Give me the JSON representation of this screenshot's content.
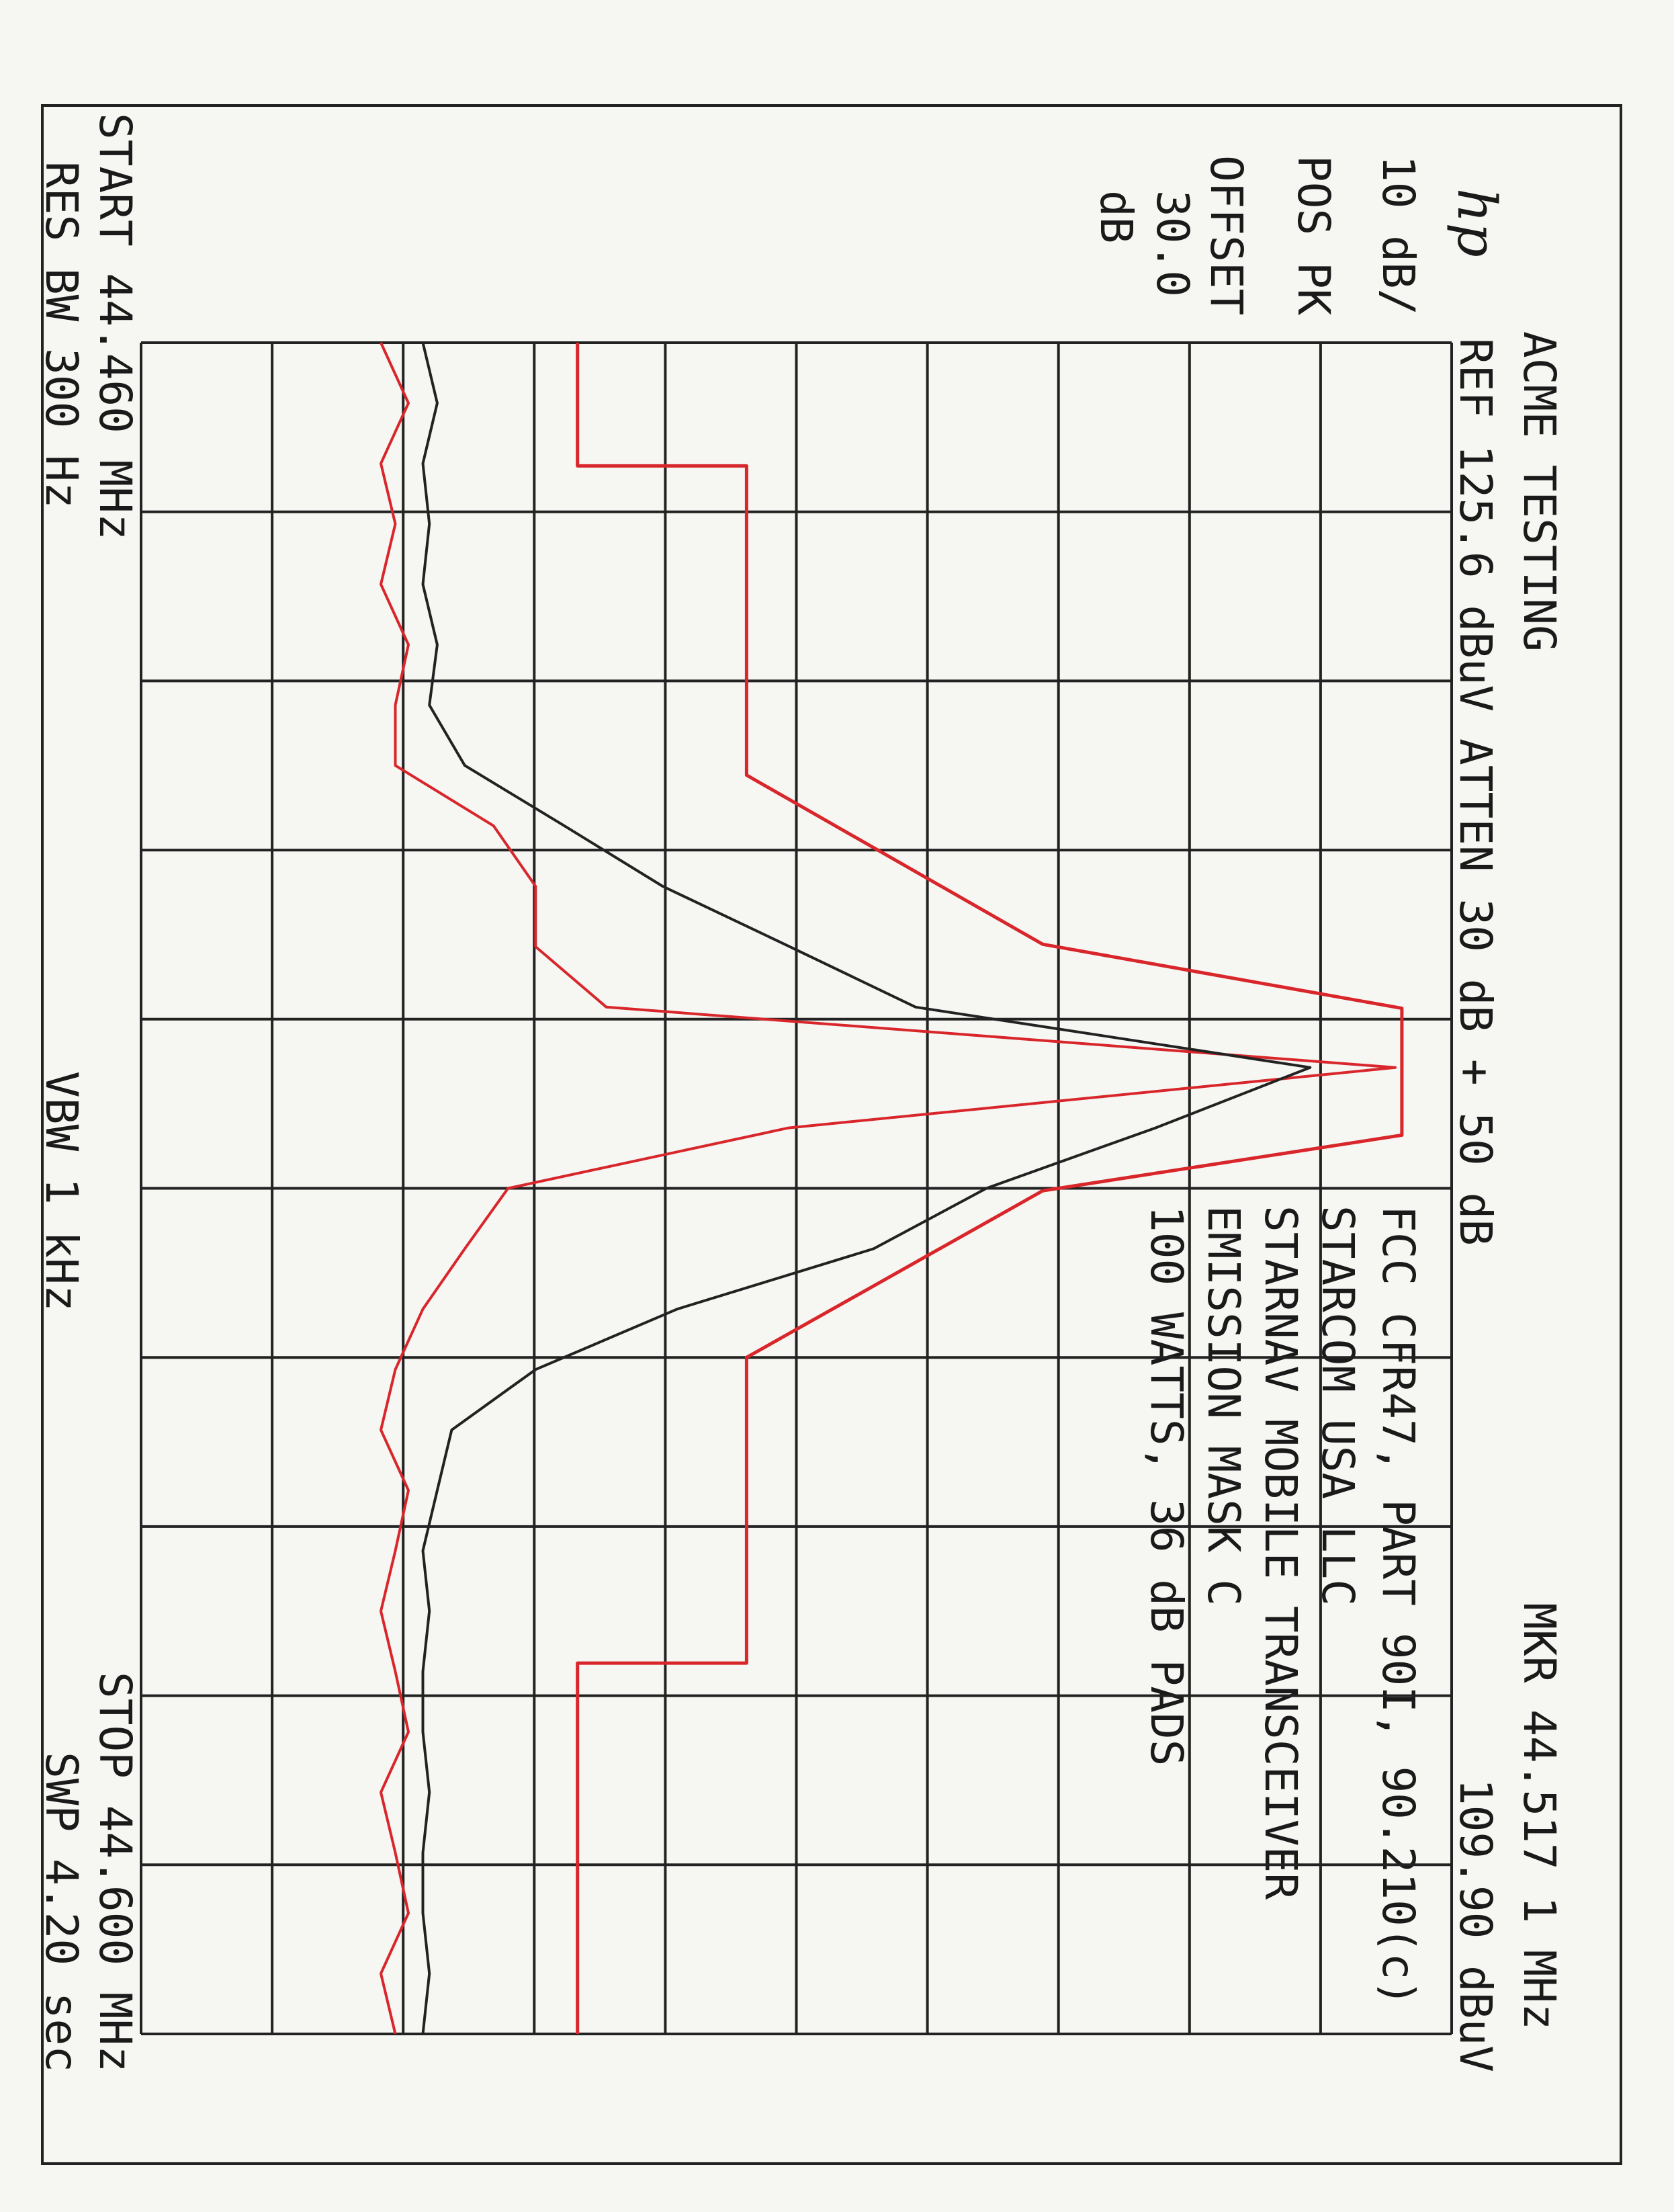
{
  "chart_data": {
    "type": "line",
    "title": "ACME TESTING",
    "reference": "REF 125.6 dBuV ATTEN 30 dB + 50 dB",
    "logo": "hp",
    "marker": [
      "MKR 44.517 1 MHz",
      "109.90 dBuV"
    ],
    "settings": [
      "10 dB/",
      "POS PK",
      "OFFSET",
      "30.0",
      "dB"
    ],
    "annotations": [
      "FCC CFR47, PART 90I, 90.210(c)",
      "STARCOM USA LLC",
      "STARNAV MOBILE TRANSCEIVER",
      "EMISSION MASK C",
      "100 WATTS, 36 dB PADS"
    ],
    "footer": {
      "start": "START 44.460 MHz",
      "stop": "STOP 44.600 MHz",
      "rbw": "RES BW 300 Hz",
      "vbw": "VBW 1 kHz",
      "sweep": "SWP 4.20 sec"
    },
    "xlim": [
      44.46,
      44.6
    ],
    "ylim": [
      25.6,
      125.6
    ],
    "xticks": [
      44.46,
      44.474,
      44.488,
      44.502,
      44.516,
      44.53,
      44.544,
      44.558,
      44.572,
      44.586,
      44.6
    ],
    "yticks": [
      25.6,
      35.6,
      45.6,
      55.6,
      65.6,
      75.6,
      85.6,
      95.6,
      105.6,
      115.6,
      125.6
    ],
    "grid": true,
    "x": [
      44.46,
      44.465,
      44.47,
      44.475,
      44.48,
      44.485,
      44.49,
      44.495,
      44.5,
      44.505,
      44.51,
      44.515,
      44.52,
      44.525,
      44.53,
      44.535,
      44.54,
      44.545,
      44.55,
      44.555,
      44.56,
      44.565,
      44.57,
      44.575,
      44.58,
      44.585,
      44.59,
      44.595,
      44.6
    ],
    "series": [
      {
        "color": "#d8262b",
        "values": [
          43.9,
          46.0,
          43.9,
          45.0,
          43.9,
          46.0,
          45.0,
          45.0,
          52.5,
          55.7,
          55.7,
          61.1,
          121.3,
          75.0,
          53.6,
          50.3,
          47.1,
          45.0,
          43.9,
          46.0,
          45.0,
          43.9,
          45.0,
          46.0,
          43.9,
          45.0,
          46.0,
          43.9,
          45.0
        ]
      },
      {
        "color": "#222222",
        "values": [
          47.1,
          48.2,
          47.1,
          47.6,
          47.1,
          48.2,
          47.6,
          50.3,
          57.9,
          65.4,
          75.1,
          84.7,
          114.8,
          103.0,
          90.1,
          81.5,
          66.5,
          55.7,
          49.3,
          48.2,
          47.1,
          47.6,
          47.1,
          47.1,
          47.6,
          47.1,
          47.1,
          47.6,
          47.1
        ]
      },
      {
        "color": "#d8262b",
        "x": [
          44.46,
          44.4702,
          44.4702,
          44.4958,
          44.5098,
          44.5151,
          44.5256,
          44.5302,
          44.544,
          44.5693,
          44.5693,
          44.6
        ],
        "values": [
          58.9,
          58.9,
          71.8,
          71.8,
          94.4,
          121.8,
          121.8,
          94.4,
          71.8,
          71.8,
          58.9,
          58.9
        ]
      }
    ]
  }
}
